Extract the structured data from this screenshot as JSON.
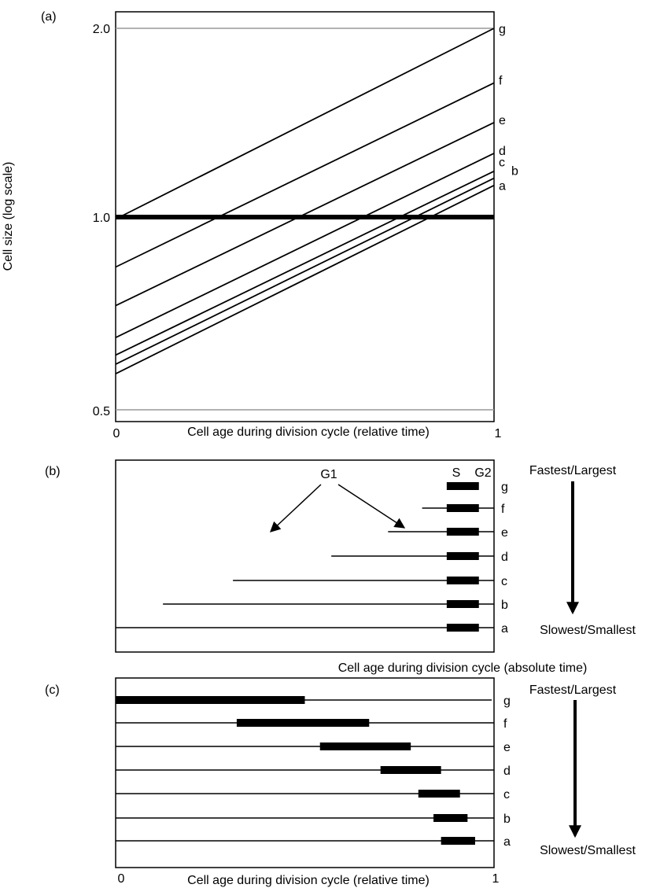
{
  "panels": [
    {
      "id": "a",
      "label": "(a)",
      "xlabel": "Cell age during division cycle (relative time)",
      "ylabel": "Cell size (log scale)",
      "x_ticks": [
        "0",
        "1"
      ],
      "y_ticks": [
        "0.5",
        "1.0",
        "2.0"
      ]
    },
    {
      "id": "b",
      "label": "(b)",
      "xlabel": "Cell age during division cycle (absolute time)",
      "phase_labels": [
        "G1",
        "S",
        "G2"
      ],
      "top_note": "Fastest/Largest",
      "bottom_note": "Slowest/Smallest"
    },
    {
      "id": "c",
      "label": "(c)",
      "xlabel": "Cell age during division cycle (relative time)",
      "x_ticks": [
        "0",
        "1"
      ],
      "top_note": "Fastest/Largest",
      "bottom_note": "Slowest/Smallest"
    }
  ],
  "chart_data": [
    {
      "type": "line",
      "panel": "a",
      "xlabel": "Cell age during division cycle (relative time)",
      "ylabel": "Cell size (log scale)",
      "xlim": [
        0,
        1
      ],
      "ylim": [
        0.5,
        2.0
      ],
      "y_scale": "log",
      "reference_line": 1.0,
      "series": [
        {
          "name": "a",
          "x": [
            0,
            1
          ],
          "y": [
            0.57,
            1.13
          ]
        },
        {
          "name": "b",
          "x": [
            0,
            1
          ],
          "y": [
            0.59,
            1.16
          ]
        },
        {
          "name": "c",
          "x": [
            0,
            1
          ],
          "y": [
            0.61,
            1.19
          ]
        },
        {
          "name": "d",
          "x": [
            0,
            1
          ],
          "y": [
            0.65,
            1.27
          ]
        },
        {
          "name": "e",
          "x": [
            0,
            1
          ],
          "y": [
            0.73,
            1.42
          ]
        },
        {
          "name": "f",
          "x": [
            0,
            1
          ],
          "y": [
            0.84,
            1.64
          ]
        },
        {
          "name": "g",
          "x": [
            0,
            1
          ],
          "y": [
            1.0,
            2.0
          ]
        }
      ]
    },
    {
      "type": "bar",
      "panel": "b",
      "xlabel": "Cell age during division cycle (absolute time)",
      "xlim": [
        0,
        1
      ],
      "rows": [
        {
          "name": "g",
          "g1_start": 1.0,
          "s_start": 0.875,
          "s_end": 0.96,
          "end": 1.0
        },
        {
          "name": "f",
          "g1_start": 0.81,
          "s_start": 0.875,
          "s_end": 0.96,
          "end": 1.0
        },
        {
          "name": "e",
          "g1_start": 0.72,
          "s_start": 0.875,
          "s_end": 0.96,
          "end": 1.0
        },
        {
          "name": "d",
          "g1_start": 0.57,
          "s_start": 0.875,
          "s_end": 0.96,
          "end": 1.0
        },
        {
          "name": "c",
          "g1_start": 0.31,
          "s_start": 0.875,
          "s_end": 0.96,
          "end": 1.0
        },
        {
          "name": "b",
          "g1_start": 0.125,
          "s_start": 0.875,
          "s_end": 0.96,
          "end": 1.0
        },
        {
          "name": "a",
          "g1_start": 0.0,
          "s_start": 0.875,
          "s_end": 0.96,
          "end": 1.0
        }
      ]
    },
    {
      "type": "bar",
      "panel": "c",
      "xlabel": "Cell age during division cycle (relative time)",
      "xlim": [
        0,
        1
      ],
      "rows": [
        {
          "name": "g",
          "s_start": 0.0,
          "s_end": 0.5
        },
        {
          "name": "f",
          "s_start": 0.32,
          "s_end": 0.67
        },
        {
          "name": "e",
          "s_start": 0.54,
          "s_end": 0.78
        },
        {
          "name": "d",
          "s_start": 0.7,
          "s_end": 0.86
        },
        {
          "name": "c",
          "s_start": 0.8,
          "s_end": 0.91
        },
        {
          "name": "b",
          "s_start": 0.84,
          "s_end": 0.93
        },
        {
          "name": "a",
          "s_start": 0.86,
          "s_end": 0.95
        }
      ]
    }
  ]
}
